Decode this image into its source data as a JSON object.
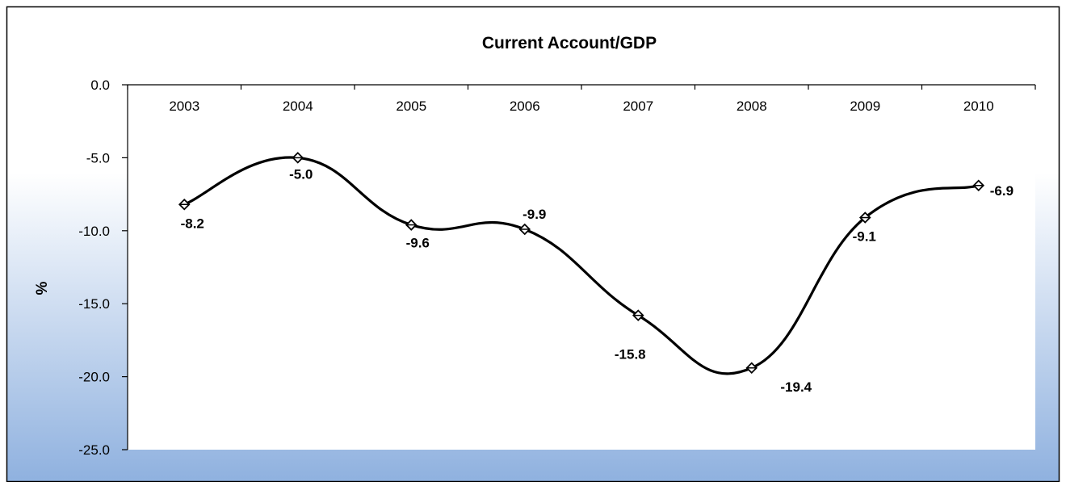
{
  "chart_data": {
    "type": "line",
    "title": "Current Account/GDP",
    "xlabel": "",
    "ylabel": "%",
    "categories": [
      "2003",
      "2004",
      "2005",
      "2006",
      "2007",
      "2008",
      "2009",
      "2010"
    ],
    "series": [
      {
        "values": [
          -8.2,
          -5.0,
          -9.6,
          -9.9,
          -15.8,
          -19.4,
          -9.1,
          -6.9
        ]
      }
    ],
    "data_labels": [
      "-8.2",
      "-5.0",
      "-9.6",
      "-9.9",
      "-15.8",
      "-19.4",
      "-9.1",
      "-6.9"
    ],
    "y_ticks": [
      "0.0",
      "-5.0",
      "-10.0",
      "-15.0",
      "-20.0",
      "-25.0"
    ],
    "ylim": [
      -25,
      0
    ],
    "x_axis_position": "top",
    "smooth": true,
    "grid": false,
    "legend": "none",
    "colors": {
      "line": "#000000",
      "background_top": "#ffffff",
      "background_bottom": "#8fb1df",
      "plot_fill": "#ffffff"
    }
  }
}
